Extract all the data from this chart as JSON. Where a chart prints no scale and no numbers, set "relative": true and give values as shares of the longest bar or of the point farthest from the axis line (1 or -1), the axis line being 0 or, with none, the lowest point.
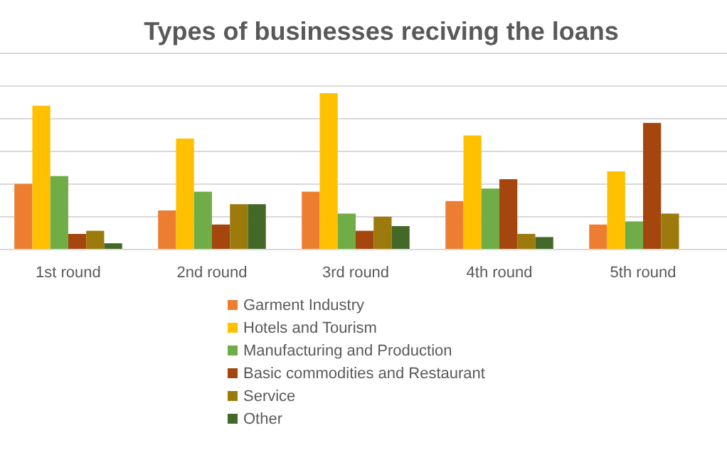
{
  "chart_data": {
    "type": "bar",
    "title": "Types of businesses reciving the loans",
    "relative": true,
    "grid": "y",
    "legend": "bottom",
    "categories": [
      "1st round",
      "2nd round",
      "3rd round",
      "4th round",
      "5th round"
    ],
    "series": [
      {
        "name": "Garment Industry",
        "color": "#ed7d31",
        "values": [
          0.42,
          0.25,
          0.37,
          0.31,
          0.16
        ]
      },
      {
        "name": "Hotels and Tourism",
        "color": "#ffc000",
        "values": [
          0.92,
          0.71,
          1,
          0.73,
          0.5
        ]
      },
      {
        "name": "Manufacturing and Production",
        "color": "#70ad47",
        "values": [
          0.47,
          0.37,
          0.23,
          0.39,
          0.18
        ]
      },
      {
        "name": "Basic commodities and Restaurant",
        "color": "#a5460f",
        "values": [
          0.1,
          0.16,
          0.12,
          0.45,
          0.81
        ]
      },
      {
        "name": "Service",
        "color": "#9c7a0b",
        "values": [
          0.12,
          0.29,
          0.21,
          0.1,
          0.23
        ]
      },
      {
        "name": "Other",
        "color": "#436827",
        "values": [
          0.04,
          0.29,
          0.15,
          0.08,
          null
        ]
      }
    ]
  }
}
